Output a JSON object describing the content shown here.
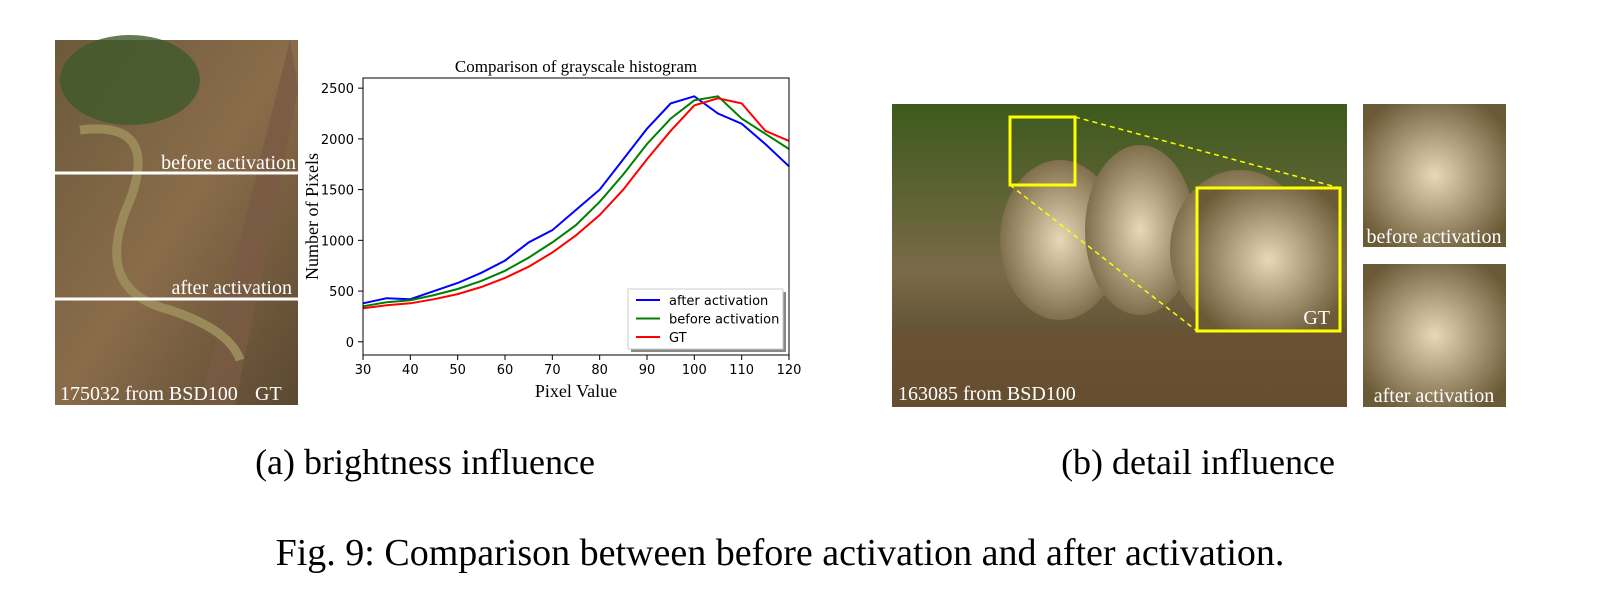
{
  "panel_a": {
    "image_labels": [
      "before activation",
      "after activation",
      "175032 from BSD100",
      "GT"
    ],
    "subcaption": "(a) brightness influence"
  },
  "chart_data": {
    "type": "line",
    "title": "Comparison of  grayscale histogram",
    "x_label": "Pixel Value",
    "y_label": "Number of Pixels",
    "x": [
      30,
      35,
      40,
      45,
      50,
      55,
      60,
      65,
      70,
      75,
      80,
      85,
      90,
      95,
      100,
      105,
      110,
      115,
      120
    ],
    "series": [
      {
        "name": "after activation",
        "color": "#0000ff",
        "values": [
          380,
          430,
          420,
          500,
          580,
          680,
          800,
          980,
          1100,
          1300,
          1500,
          1800,
          2100,
          2350,
          2420,
          2250,
          2150,
          1950,
          1730
        ]
      },
      {
        "name": "before activation",
        "color": "#008000",
        "values": [
          350,
          390,
          410,
          460,
          520,
          600,
          700,
          830,
          980,
          1150,
          1380,
          1650,
          1950,
          2200,
          2380,
          2420,
          2200,
          2050,
          1900
        ]
      },
      {
        "name": "GT",
        "color": "#ff0000",
        "values": [
          330,
          360,
          380,
          420,
          470,
          540,
          630,
          740,
          880,
          1050,
          1250,
          1500,
          1800,
          2080,
          2330,
          2400,
          2350,
          2080,
          1980
        ]
      }
    ],
    "xlim": [
      30,
      120
    ],
    "ylim": [
      -130,
      2600
    ],
    "xticks": [
      30,
      40,
      50,
      60,
      70,
      80,
      90,
      100,
      110,
      120
    ],
    "yticks": [
      0,
      500,
      1000,
      1500,
      2000,
      2500
    ],
    "legend": "lower right"
  },
  "panel_b": {
    "image_label": "163085 from BSD100",
    "zoom_label": "GT",
    "crop_labels": [
      "before activation",
      "after activation"
    ],
    "subcaption": "(b) detail influence"
  },
  "caption": "Fig. 9: Comparison between before activation and after activation."
}
